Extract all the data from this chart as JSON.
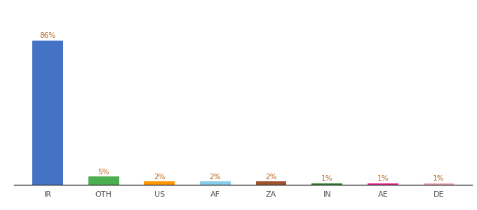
{
  "categories": [
    "IR",
    "OTH",
    "US",
    "AF",
    "ZA",
    "IN",
    "AE",
    "DE"
  ],
  "values": [
    86,
    5,
    2,
    2,
    2,
    1,
    1,
    1
  ],
  "bar_colors": [
    "#4472c4",
    "#4caf50",
    "#ff9800",
    "#87ceeb",
    "#a0522d",
    "#2e7d32",
    "#e91e8c",
    "#f4a0b0"
  ],
  "label_color": "#b5651d",
  "tick_color": "#555555",
  "ylim": [
    0,
    100
  ],
  "background_color": "#ffffff",
  "bar_width": 0.55,
  "label_fontsize": 7.5,
  "tick_fontsize": 8
}
